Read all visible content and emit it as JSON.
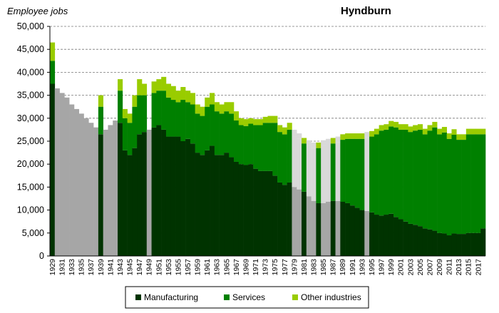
{
  "chart_data": {
    "type": "bar",
    "stacked": true,
    "title": "Hyndburn",
    "ylabel": "Employee jobs",
    "ylim": [
      0,
      50000
    ],
    "yticks": [
      0,
      5000,
      10000,
      15000,
      20000,
      25000,
      30000,
      35000,
      40000,
      45000,
      50000
    ],
    "ytick_labels": [
      "0",
      "5,000",
      "10,000",
      "15,000",
      "20,000",
      "25,000",
      "30,000",
      "35,000",
      "40,000",
      "45,000",
      "50,000"
    ],
    "grid": "horizontal dashed",
    "legend_position": "bottom",
    "x_start": 1929,
    "x_end": 2018,
    "x_tick_labels": [
      "1929",
      "1931",
      "1933",
      "1935",
      "1937",
      "1939",
      "1941",
      "1943",
      "1945",
      "1947",
      "1949",
      "1951",
      "1953",
      "1955",
      "1957",
      "1959",
      "1961",
      "1963",
      "1965",
      "1967",
      "1969",
      "1971",
      "1973",
      "1975",
      "1977",
      "1979",
      "1981",
      "1983",
      "1985",
      "1987",
      "1989",
      "1991",
      "1993",
      "1995",
      "1997",
      "1999",
      "2001",
      "2003",
      "2005",
      "2007",
      "2009",
      "2011",
      "2013",
      "2015",
      "2017"
    ],
    "estimated_years": [
      1930,
      1931,
      1932,
      1933,
      1934,
      1935,
      1936,
      1937,
      1938,
      1940,
      1941,
      1942,
      1949,
      1979,
      1980,
      1982,
      1983,
      1985,
      1986,
      1988,
      1994
    ],
    "estimated_color": "#a6a6a6",
    "estimated_top_color": "#d9d9d9",
    "series": [
      {
        "name": "Manufacturing",
        "color": "#003300",
        "values": [
          37500,
          36500,
          35500,
          34500,
          33000,
          32000,
          31000,
          30000,
          29000,
          28000,
          26500,
          27500,
          28500,
          29500,
          29000,
          23000,
          22000,
          23500,
          26500,
          27000,
          27500,
          28000,
          28500,
          27500,
          26000,
          26000,
          26000,
          25000,
          25500,
          24500,
          22500,
          22000,
          23000,
          24000,
          22000,
          22000,
          22500,
          21500,
          20500,
          20000,
          19800,
          20000,
          19000,
          18500,
          18500,
          18500,
          17500,
          16000,
          15500,
          16000,
          15000,
          14500,
          14000,
          13000,
          12000,
          11500,
          11500,
          11800,
          12000,
          12000,
          11800,
          11500,
          11000,
          10500,
          10000,
          9800,
          9500,
          9000,
          8800,
          9000,
          9200,
          8500,
          8000,
          7500,
          7000,
          6800,
          6500,
          6000,
          5800,
          5500,
          5000,
          4900,
          4500,
          4900,
          4800,
          4800,
          5000,
          5000,
          5000,
          6000
        ]
      },
      {
        "name": "Services",
        "color": "#008000",
        "values": [
          5000,
          0,
          0,
          0,
          0,
          0,
          0,
          0,
          0,
          0,
          6000,
          0,
          0,
          0,
          7000,
          7000,
          7000,
          9000,
          8500,
          8000,
          0,
          7500,
          7500,
          8500,
          8500,
          8000,
          7500,
          9000,
          8000,
          8500,
          8500,
          8500,
          9500,
          9000,
          9500,
          9000,
          9000,
          9500,
          9000,
          8500,
          8500,
          8800,
          9500,
          10000,
          10500,
          10500,
          11500,
          11000,
          11000,
          11500,
          11000,
          11000,
          10500,
          11000,
          11500,
          12000,
          12500,
          12500,
          12500,
          12800,
          13500,
          14000,
          14500,
          15000,
          15500,
          16000,
          16500,
          17500,
          18500,
          18500,
          19000,
          19500,
          19500,
          20000,
          20000,
          20500,
          21000,
          20500,
          21500,
          22500,
          21500,
          22000,
          21000,
          21500,
          20500,
          20500,
          21500,
          21500,
          21500,
          20500
        ]
      },
      {
        "name": "Other industries",
        "color": "#99cc00",
        "values": [
          4000,
          0,
          0,
          0,
          0,
          0,
          0,
          0,
          0,
          0,
          2500,
          0,
          0,
          0,
          2500,
          2000,
          2000,
          2500,
          3500,
          2500,
          0,
          2500,
          2500,
          3000,
          3000,
          3000,
          2500,
          2800,
          2500,
          2500,
          2000,
          2000,
          2000,
          2500,
          2000,
          2000,
          2000,
          2500,
          2000,
          1500,
          1500,
          1200,
          1300,
          1300,
          1300,
          1500,
          1500,
          1500,
          1500,
          1500,
          1500,
          1200,
          1200,
          1200,
          1200,
          1200,
          1200,
          1200,
          1200,
          1200,
          1200,
          1200,
          1200,
          1200,
          1200,
          1200,
          1200,
          1200,
          1200,
          1200,
          1200,
          1200,
          1200,
          1200,
          1200,
          1200,
          1200,
          1200,
          1200,
          1200,
          1200,
          1200,
          1200,
          1200,
          1200,
          1200,
          1200,
          1200,
          1200,
          1200
        ]
      }
    ]
  }
}
